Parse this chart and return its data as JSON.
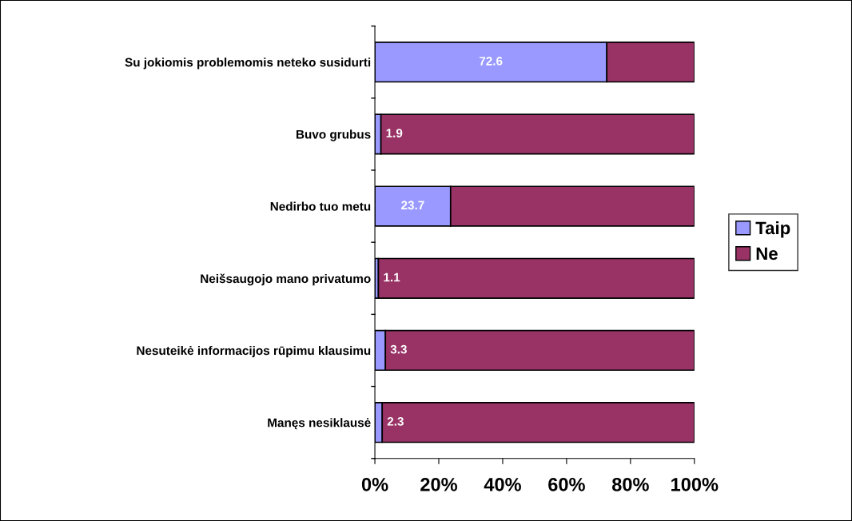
{
  "chart_data": {
    "type": "bar",
    "orientation": "horizontal",
    "stacked": true,
    "categories": [
      "Su jokiomis problemomis neteko susidurti",
      "Buvo grubus",
      "Nedirbo tuo metu",
      "Neišsaugojo mano privatumo",
      "Nesuteikė informacijos rūpimu klausimu",
      "Manęs nesiklausė"
    ],
    "series": [
      {
        "name": "Taip",
        "color": "#9999ff",
        "values": [
          72.6,
          1.9,
          23.7,
          1.1,
          3.3,
          2.3
        ],
        "value_labels": [
          "72.6",
          "1.9",
          "23.7",
          "1.1",
          "3.3",
          "2.3"
        ]
      },
      {
        "name": "Ne",
        "color": "#993366",
        "values": [
          27.4,
          98.1,
          76.3,
          98.9,
          96.7,
          97.7
        ]
      }
    ],
    "xlim": [
      0,
      100
    ],
    "xticks": [
      {
        "value": 0,
        "label": "0%"
      },
      {
        "value": 20,
        "label": "20%"
      },
      {
        "value": 40,
        "label": "40%"
      },
      {
        "value": 60,
        "label": "60%"
      },
      {
        "value": 80,
        "label": "80%"
      },
      {
        "value": 100,
        "label": "100%"
      }
    ],
    "grid": false,
    "legend": "right"
  }
}
